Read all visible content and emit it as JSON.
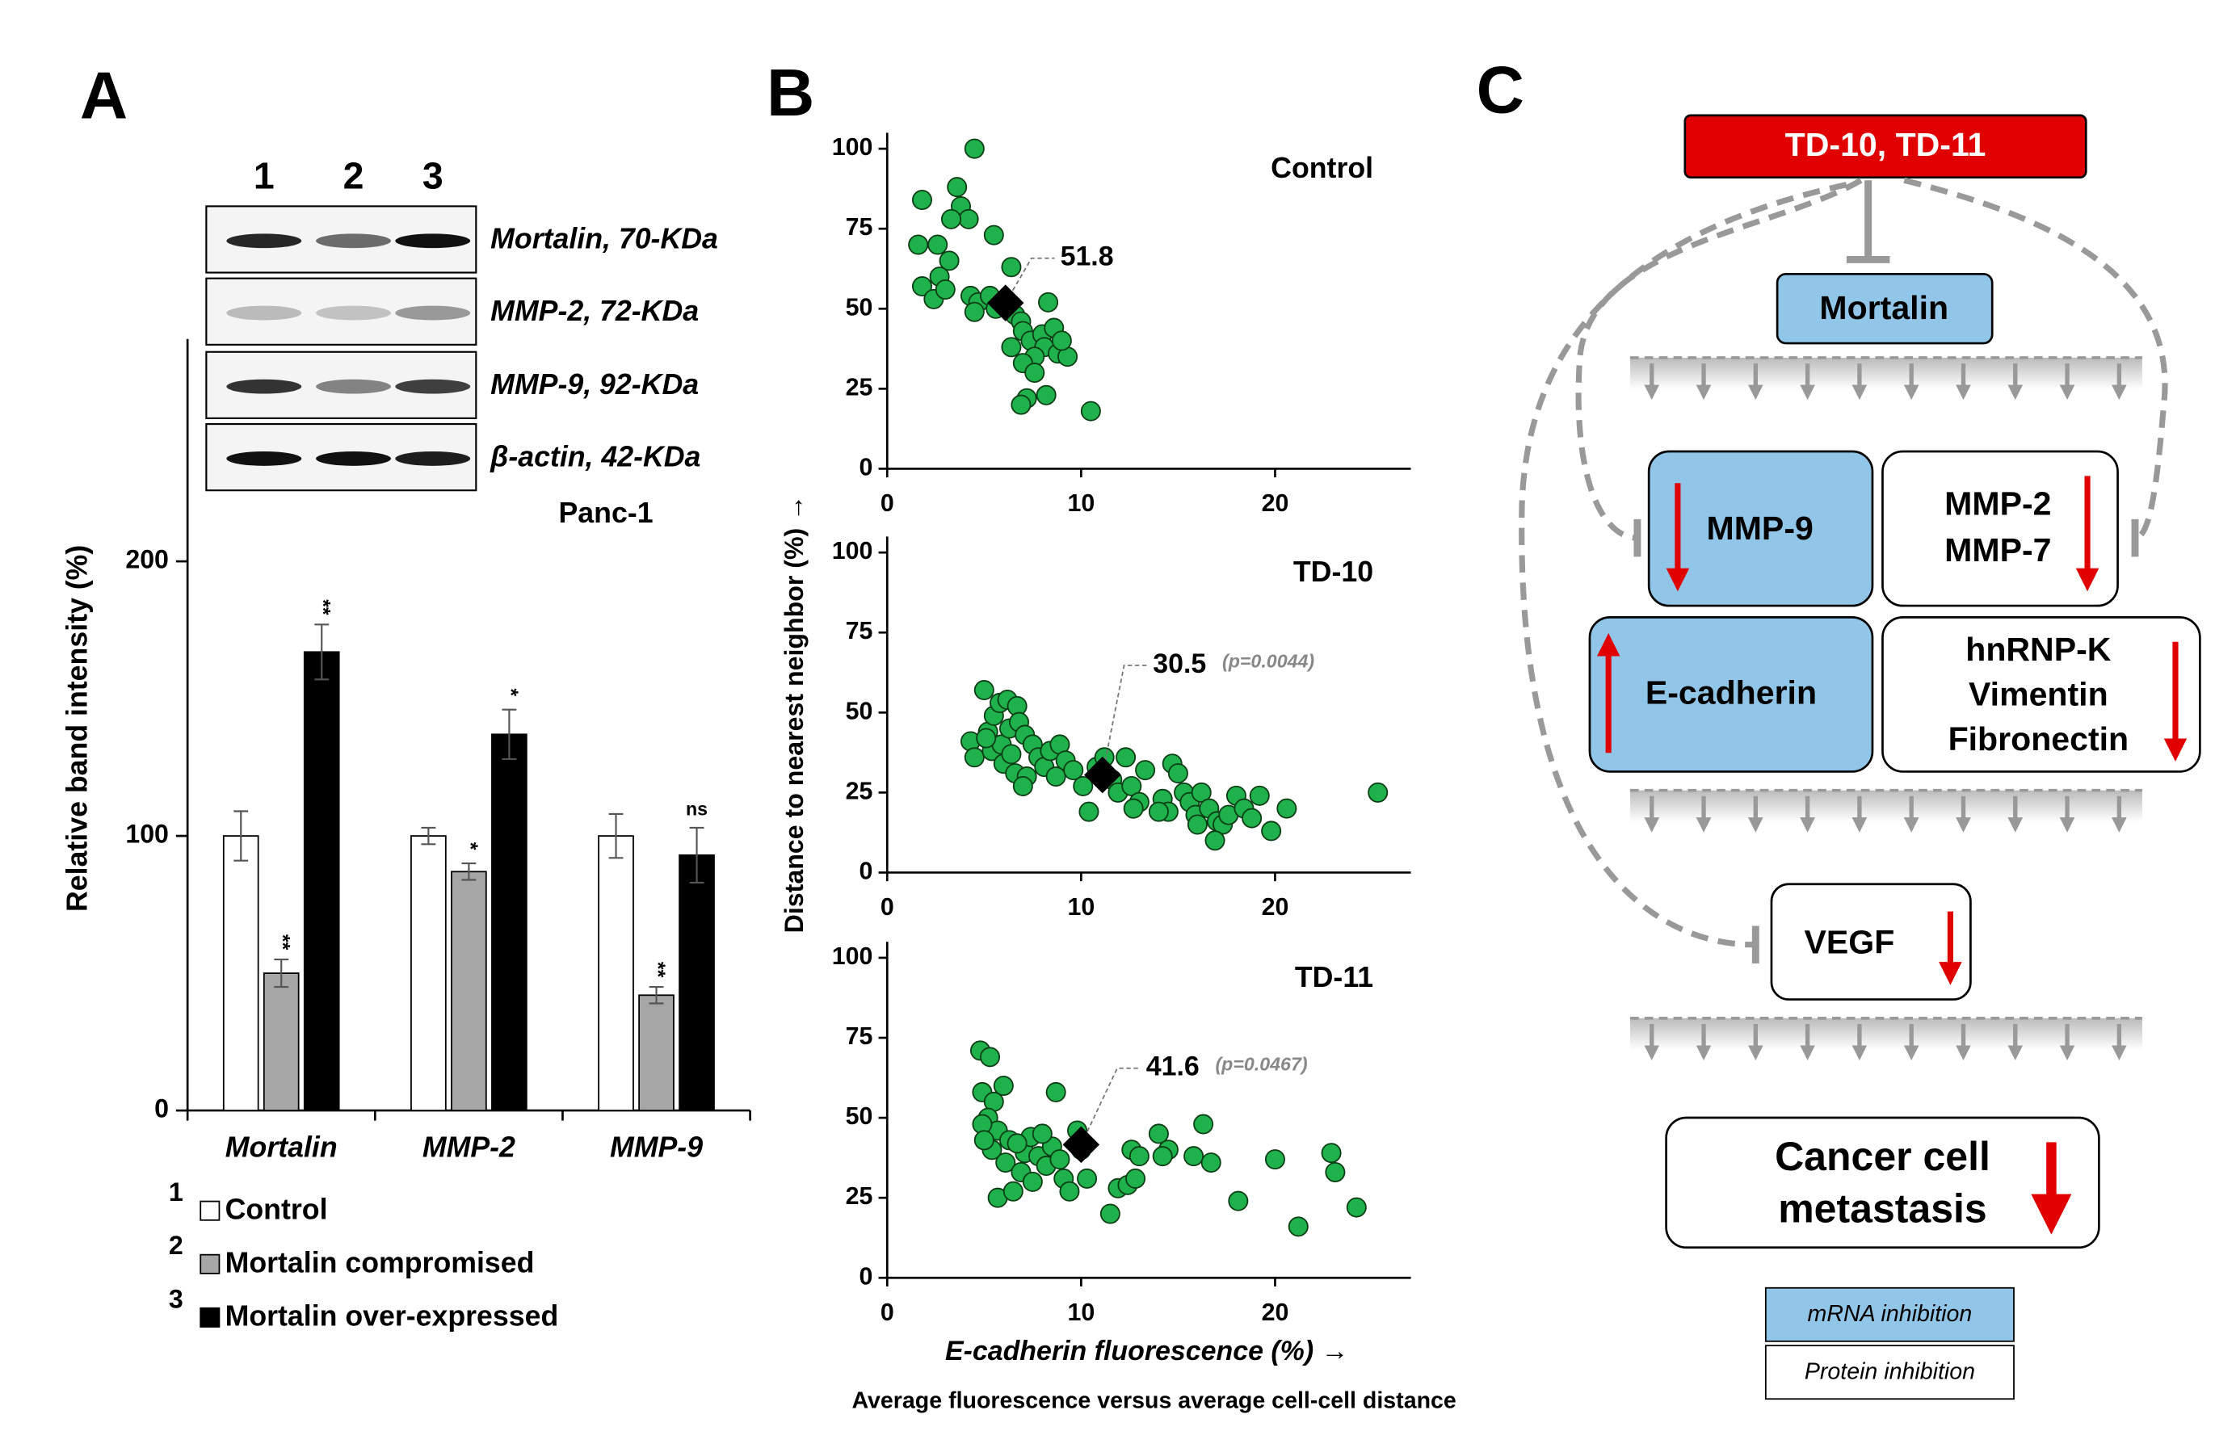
{
  "panels": [
    "A",
    "B",
    "C"
  ],
  "blot": {
    "lanes": [
      "1",
      "2",
      "3"
    ],
    "proteins": [
      "Mortalin, 70-KDa",
      "MMP-2, 72-KDa",
      "MMP-9, 92-KDa",
      "β-actin, 42-KDa"
    ],
    "cell_line": "Panc-1"
  },
  "chart_data": [
    {
      "type": "bar",
      "ylabel": "Relative band intensity (%)",
      "categories": [
        "Mortalin",
        "MMP-2",
        "MMP-9"
      ],
      "ylim": [
        0,
        281
      ],
      "yticks": [
        0,
        100,
        200
      ],
      "series": [
        {
          "name": "Control",
          "color": "#ffffff",
          "values": [
            100,
            100,
            100
          ],
          "errors": [
            9,
            3,
            8
          ]
        },
        {
          "name": "Mortalin compromised",
          "color": "#a6a6a6",
          "values": [
            50,
            87,
            42
          ],
          "errors": [
            5,
            3,
            3
          ],
          "significance": [
            "**",
            "*",
            "**"
          ]
        },
        {
          "name": "Mortalin over-expressed",
          "color": "#000000",
          "values": [
            167,
            137,
            93
          ],
          "errors": [
            10,
            9,
            10
          ],
          "significance": [
            "**",
            "*",
            "ns"
          ]
        }
      ]
    },
    {
      "type": "scatter",
      "title": "Control",
      "color": "#1fb14b",
      "xlim": [
        0,
        27
      ],
      "ylim": [
        0,
        105
      ],
      "xticks": [
        0,
        10,
        20
      ],
      "yticks": [
        0,
        25,
        50,
        75,
        100
      ],
      "x": [
        4.5,
        1.8,
        3.6,
        3.8,
        4.2,
        3.3,
        1.6,
        2.6,
        3.2,
        2.7,
        1.8,
        2.4,
        3.0,
        6.4,
        5.5,
        4.3,
        4.7,
        4.5,
        5.3,
        5.6,
        6.6,
        6.9,
        7.0,
        7.4,
        8.0,
        8.3,
        8.6,
        8.1,
        7.6,
        8.8,
        9.3,
        6.4,
        7.0,
        7.2,
        6.9,
        8.2,
        10.5,
        9.0,
        7.6
      ],
      "y": [
        100,
        84,
        88,
        82,
        78,
        78,
        70,
        70,
        65,
        60,
        57,
        53,
        56,
        63,
        73,
        54,
        52,
        49,
        54,
        50,
        48,
        46,
        43,
        40,
        42,
        52,
        44,
        38,
        35,
        36,
        35,
        38,
        33,
        22,
        20,
        23,
        18,
        40,
        30
      ],
      "mean": {
        "x": 6.1,
        "y": 51.8
      }
    },
    {
      "type": "scatter",
      "title": "TD-10",
      "color": "#1fb14b",
      "xlim": [
        0,
        27
      ],
      "ylim": [
        0,
        105
      ],
      "xticks": [
        0,
        10,
        20
      ],
      "yticks": [
        0,
        25,
        50,
        75,
        100
      ],
      "x": [
        5.0,
        4.3,
        4.5,
        5.2,
        5.5,
        5.8,
        6.2,
        6.7,
        5.4,
        5.9,
        6.3,
        6.8,
        7.1,
        7.5,
        6.0,
        6.6,
        7.2,
        7.8,
        8.1,
        8.4,
        8.9,
        9.2,
        5.1,
        6.4,
        7.0,
        8.7,
        9.6,
        10.1,
        10.4,
        10.8,
        11.2,
        11.6,
        11.9,
        12.3,
        12.6,
        13.0,
        12.7,
        13.3,
        14.7,
        15.0,
        14.2,
        14.5,
        15.3,
        15.6,
        15.9,
        16.2,
        16.6,
        17.0,
        17.3,
        17.6,
        18.0,
        18.4,
        16.9,
        18.8,
        19.2,
        19.8,
        20.6,
        25.3,
        14.0,
        16.0
      ],
      "y": [
        57,
        41,
        36,
        44,
        49,
        53,
        54,
        52,
        38,
        40,
        45,
        47,
        43,
        40,
        34,
        31,
        30,
        36,
        33,
        38,
        40,
        35,
        42,
        37,
        27,
        30,
        32,
        27,
        19,
        33,
        36,
        29,
        25,
        36,
        27,
        22,
        20,
        32,
        34,
        31,
        23,
        19,
        25,
        22,
        18,
        25,
        20,
        16,
        15,
        18,
        24,
        20,
        10,
        17,
        24,
        13,
        20,
        25,
        19,
        15
      ],
      "mean": {
        "x": 11.1,
        "y": 30.5,
        "p": "(p=0.0044)"
      }
    },
    {
      "type": "scatter",
      "title": "TD-11",
      "color": "#1fb14b",
      "xlim": [
        0,
        27
      ],
      "ylim": [
        0,
        105
      ],
      "xticks": [
        0,
        10,
        20
      ],
      "yticks": [
        0,
        25,
        50,
        75,
        100
      ],
      "x": [
        4.8,
        5.3,
        4.9,
        5.5,
        6.0,
        5.2,
        5.7,
        6.3,
        4.9,
        5.4,
        6.1,
        5.7,
        6.5,
        6.9,
        7.1,
        7.4,
        7.8,
        8.2,
        8.5,
        8.7,
        8.0,
        9.1,
        9.4,
        9.8,
        10.3,
        10.0,
        11.5,
        11.9,
        12.4,
        12.8,
        12.6,
        13.0,
        14.0,
        14.5,
        14.2,
        15.8,
        16.3,
        16.7,
        18.1,
        20.0,
        21.2,
        22.9,
        23.1,
        24.2,
        6.7,
        7.5,
        8.9,
        5.0
      ],
      "y": [
        71,
        69,
        58,
        55,
        60,
        50,
        46,
        43,
        48,
        40,
        36,
        25,
        27,
        33,
        39,
        44,
        38,
        35,
        41,
        58,
        45,
        31,
        27,
        46,
        31,
        40,
        20,
        28,
        29,
        31,
        40,
        38,
        45,
        40,
        38,
        38,
        48,
        36,
        24,
        37,
        16,
        39,
        33,
        22,
        42,
        30,
        37,
        43
      ],
      "mean": {
        "x": 10.0,
        "y": 41.6,
        "p": "(p=0.0467)"
      }
    }
  ],
  "panel_b": {
    "ylabel": "Distance to nearest neighbor (%) →",
    "xlabel": "E-cadherin fluorescence (%) →",
    "caption": "Average fluorescence versus average cell-cell distance"
  },
  "diagram": {
    "drug": "TD-10, TD-11",
    "target": "Mortalin",
    "mmp9": "MMP-9",
    "mmp2": [
      "MMP-2",
      "MMP-7"
    ],
    "ecad": "E-cadherin",
    "emt": [
      "hnRNP-K",
      "Vimentin",
      "Fibronectin"
    ],
    "vegf": "VEGF",
    "outcome": [
      "Cancer cell",
      "metastasis"
    ],
    "legend": [
      "mRNA inhibition",
      "Protein inhibition"
    ]
  }
}
